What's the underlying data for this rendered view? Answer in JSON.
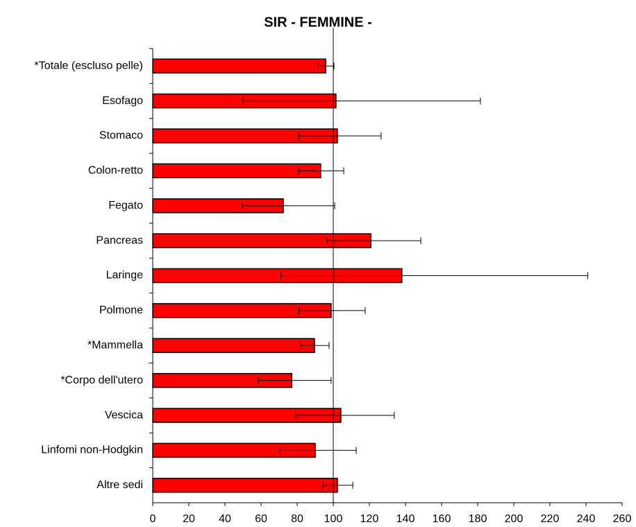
{
  "chart_data": {
    "type": "bar",
    "orientation": "horizontal",
    "title": "SIR - FEMMINE -",
    "categories": [
      "*Totale (escluso pelle)",
      "Esofago",
      "Stomaco",
      "Colon-retto",
      "Fegato",
      "Pancreas",
      "Laringe",
      "Polmone",
      "*Mammella",
      "*Corpo dell'utero",
      "Vescica",
      "Linfomi non-Hodgkin",
      "Altre sedi"
    ],
    "values": [
      95.8,
      101.5,
      102.3,
      93,
      72.3,
      120.8,
      138,
      98.8,
      89.6,
      77,
      104.2,
      90,
      102.3
    ],
    "ci_low": [
      91.5,
      50,
      81,
      80.8,
      49.6,
      96.5,
      71,
      81,
      82,
      58.5,
      79.2,
      70.4,
      94.2
    ],
    "ci_high": [
      100.4,
      181.5,
      126.5,
      105.8,
      100.8,
      148.5,
      241,
      117.7,
      97.7,
      98.8,
      133.8,
      112.7,
      110.8
    ],
    "color": "#ff0000",
    "reference_line": 100,
    "xlim": [
      0,
      260
    ],
    "xticks": [
      0,
      20,
      40,
      60,
      80,
      100,
      120,
      140,
      160,
      180,
      200,
      220,
      240,
      260
    ]
  }
}
